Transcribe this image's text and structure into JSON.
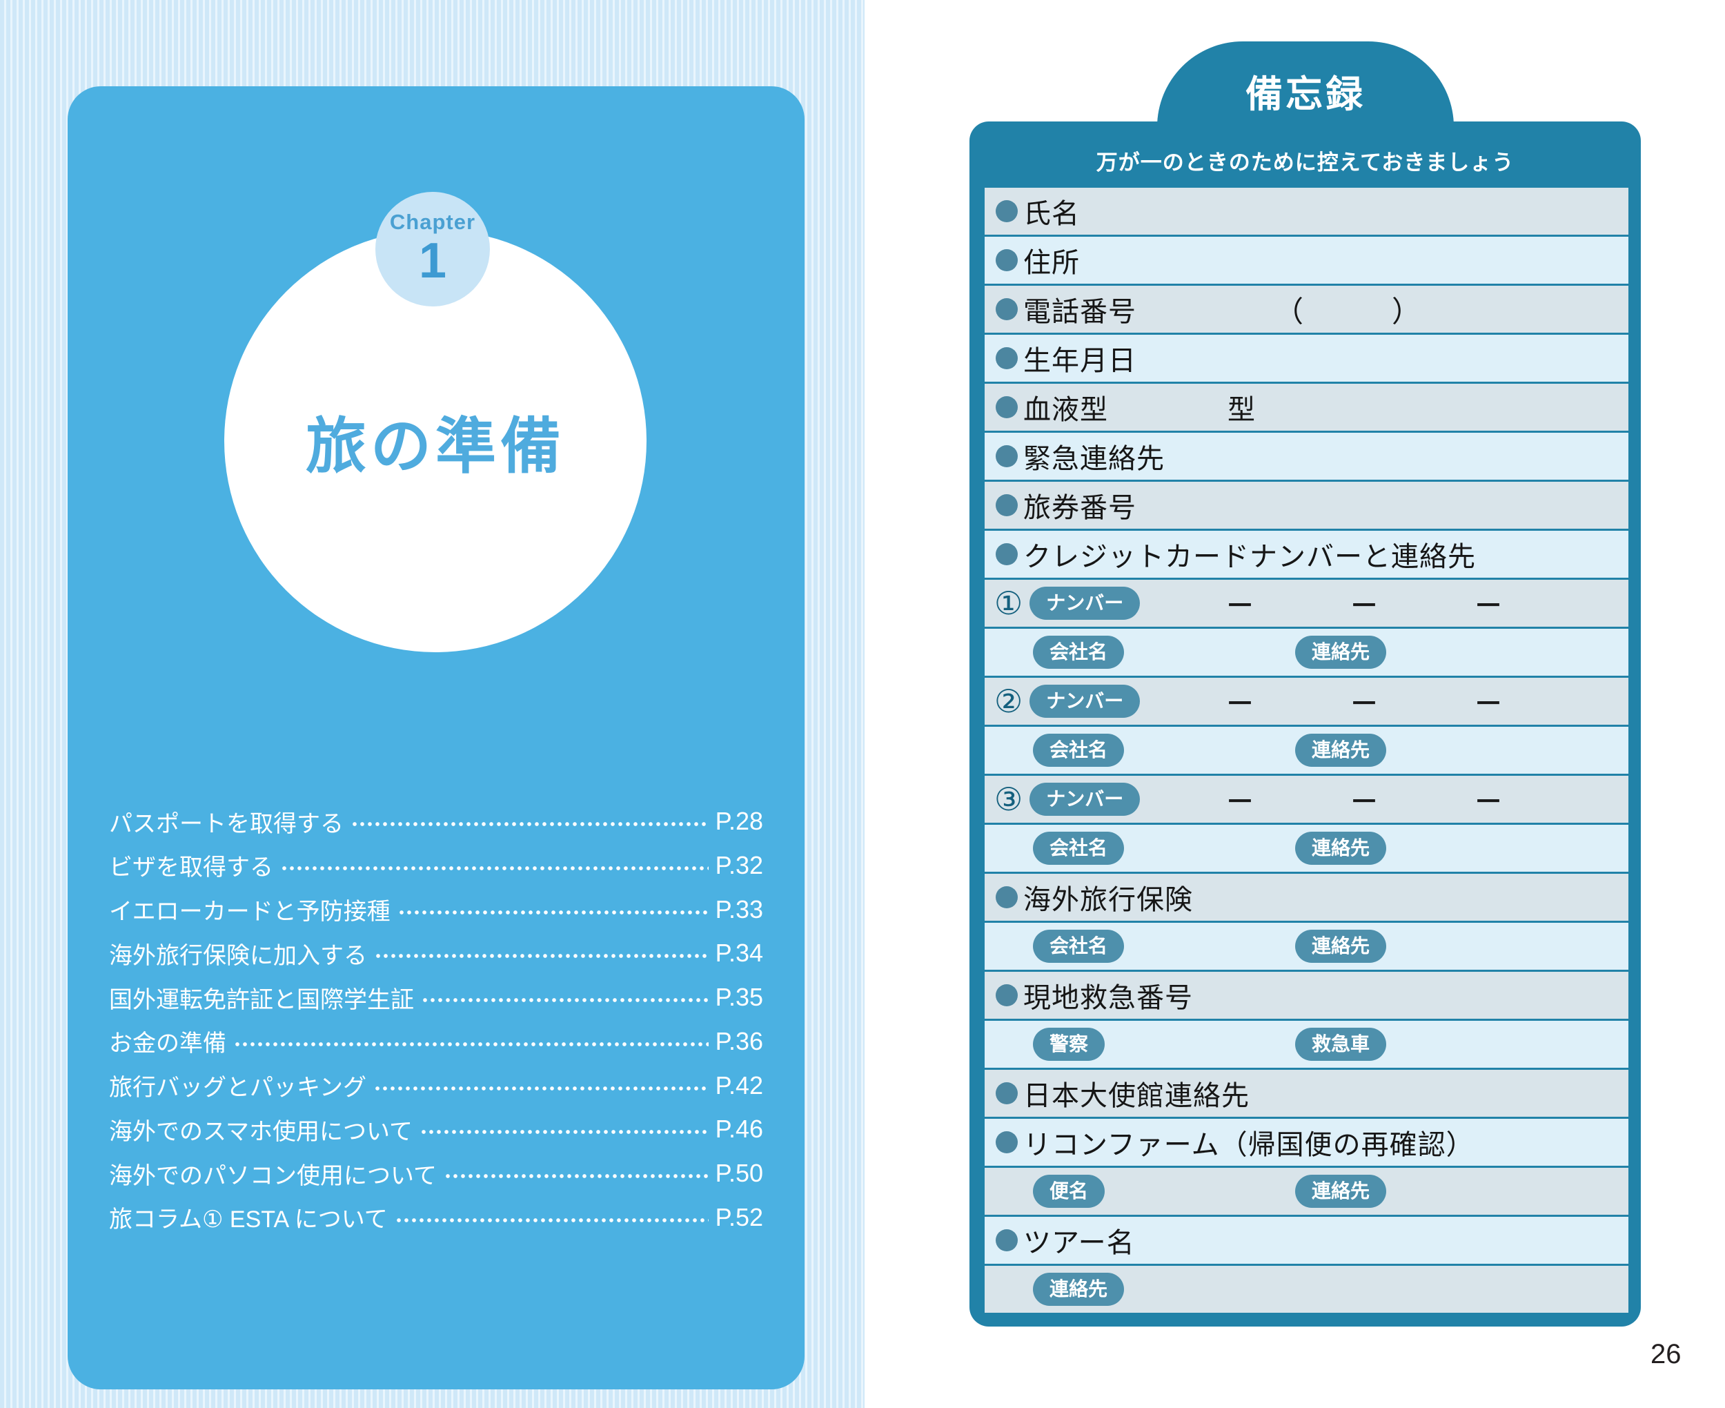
{
  "colors": {
    "stripe-a": "#cfe8f8",
    "stripe-b": "#e9f5fd",
    "panel-blue": "#4bb1e2",
    "chapter-circle": "#c8e4f6",
    "chapter-text": "#4aa0d2",
    "chapter-num": "#3d9ad2",
    "title-blue": "#4fabde",
    "teal": "#2182a8",
    "row-dark": "#d9e4ea",
    "row-light": "#def0f9",
    "pill": "#4e90ac",
    "bullet": "#4c86a0",
    "ink": "#161616",
    "circnum": "#14607e"
  },
  "page": {
    "left": {
      "chapter_label": "Chapter",
      "chapter_number": "1",
      "title": "旅の準備",
      "toc": [
        {
          "label": "パスポートを取得する",
          "page": "P.28"
        },
        {
          "label": "ビザを取得する",
          "page": "P.32"
        },
        {
          "label": "イエローカードと予防接種",
          "page": "P.33"
        },
        {
          "label": "海外旅行保険に加入する",
          "page": "P.34"
        },
        {
          "label": "国外運転免許証と国際学生証",
          "page": "P.35"
        },
        {
          "label": "お金の準備",
          "page": "P.36"
        },
        {
          "label": "旅行バッグとパッキング",
          "page": "P.42"
        },
        {
          "label": "海外でのスマホ使用について",
          "page": "P.46"
        },
        {
          "label": "海外でのパソコン使用について",
          "page": "P.50"
        },
        {
          "label": "旅コラム① ESTA について",
          "page": "P.52"
        }
      ]
    },
    "right": {
      "header": "備忘録",
      "subtitle": "万が一のときのために控えておきましょう",
      "rows": [
        {
          "label": "氏名"
        },
        {
          "label": "住所"
        },
        {
          "label": "電話番号",
          "paren_open": "（",
          "paren_close": "）"
        },
        {
          "label": "生年月日"
        },
        {
          "label": "血液型",
          "suffix": "型"
        },
        {
          "label": "緊急連絡先"
        },
        {
          "label": "旅券番号"
        },
        {
          "label": "クレジットカードナンバーと連絡先"
        },
        {
          "num": "①",
          "pill": "ナンバー",
          "dash": "－"
        },
        {
          "pills": [
            "会社名",
            "連絡先"
          ]
        },
        {
          "num": "②",
          "pill": "ナンバー",
          "dash": "－"
        },
        {
          "pills": [
            "会社名",
            "連絡先"
          ]
        },
        {
          "num": "③",
          "pill": "ナンバー",
          "dash": "－"
        },
        {
          "pills": [
            "会社名",
            "連絡先"
          ]
        },
        {
          "label": "海外旅行保険"
        },
        {
          "pills": [
            "会社名",
            "連絡先"
          ]
        },
        {
          "label": "現地救急番号"
        },
        {
          "pills": [
            "警察",
            "救急車"
          ]
        },
        {
          "label": "日本大使館連絡先"
        },
        {
          "label": "リコンファーム（帰国便の再確認）"
        },
        {
          "pills": [
            "便名",
            "連絡先"
          ]
        },
        {
          "label": "ツアー名"
        },
        {
          "pills": [
            "連絡先"
          ]
        }
      ],
      "page_number": "26"
    }
  }
}
